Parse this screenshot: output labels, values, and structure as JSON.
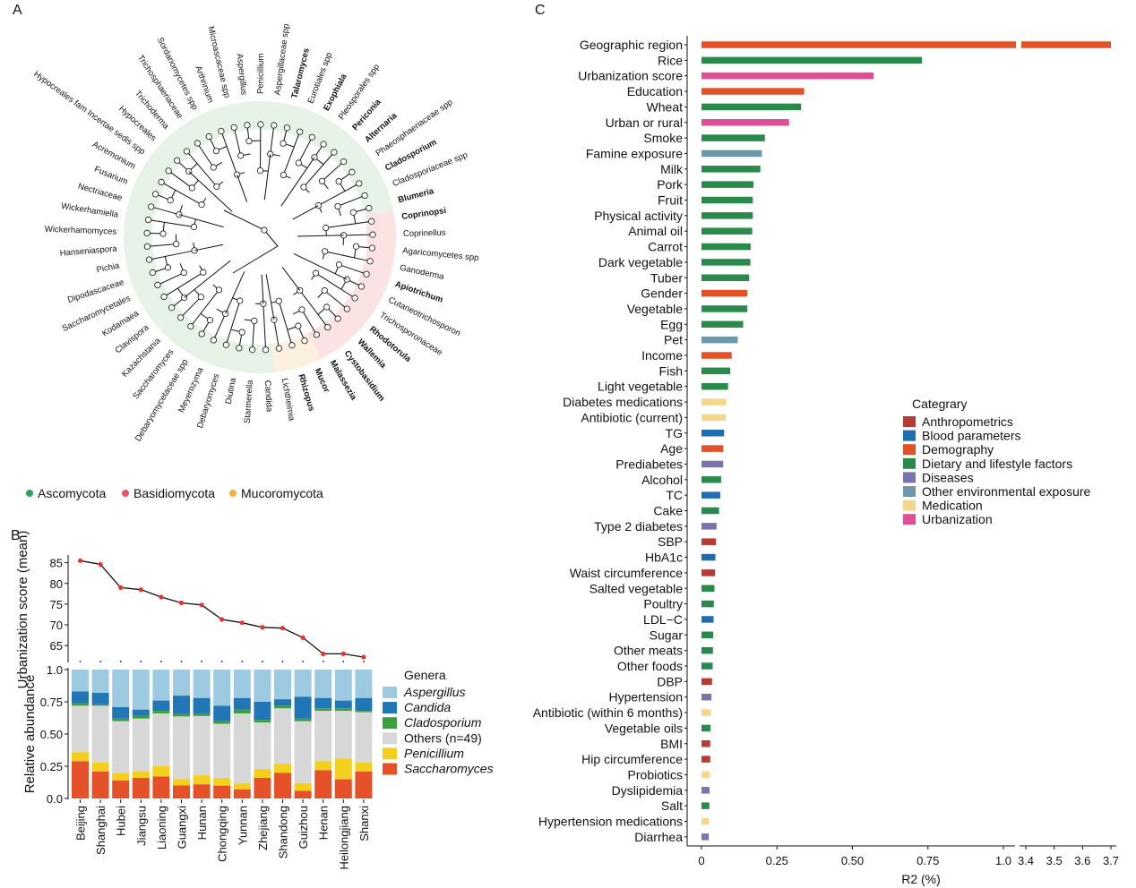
{
  "panels": {
    "a": "A",
    "b": "B",
    "c": "C"
  },
  "phylum_legend": [
    {
      "name": "Ascomycota",
      "color": "#27a35a"
    },
    {
      "name": "Basidiomycota",
      "color": "#e5566a"
    },
    {
      "name": "Mucoromycota",
      "color": "#f2b33d"
    }
  ],
  "tree": {
    "groups": [
      {
        "phylum": "Ascomycota",
        "fill": "#e6f3e6",
        "labels": [
          "Candida",
          "Starmerella",
          "Diutina",
          "Debaryomyces",
          "Meyerozyma",
          "Debaryomycetaceae spp",
          "Saccharomyces",
          "Kazachstania",
          "Clavispora",
          "Kodamaea",
          "Saccharomycetales",
          "Dipodascaceae",
          "Pichia",
          "Hanseniaspora",
          "Wickerhamomyces",
          "Wickerhamiella",
          "Nectriaceae",
          "Fusarium",
          "Acremonium",
          "Hypocreales fam Incertae sedis spp",
          "Hypocreales",
          "Trichoderma",
          "Trichosphaeriaceae",
          "Sordariomycetes spp",
          "Arthrinium",
          "Microascaceae spp",
          "Aspergillus",
          "Penicillium",
          "Aspergillaceae spp",
          "Talaromyces",
          "Eurotiales spp",
          "Exophiala",
          "Pleosporales spp",
          "Periconia",
          "Alternaria",
          "Phaeosphaeriaceae spp",
          "Cladosporium",
          "Cladosporiaceae spp",
          "Blumeria"
        ]
      },
      {
        "phylum": "Basidiomycota",
        "fill": "#fbe3e3",
        "labels": [
          "Coprinopsi",
          "Coprinellus",
          "Agaricomycetes spp",
          "Ganoderma",
          "Apiotrichum",
          "Cutaneotrichosporon",
          "Trichosporonaceae",
          "Rhodotorula",
          "Wallemia",
          "Cystobasidium",
          "Malassezia"
        ]
      },
      {
        "phylum": "Mucoromycota",
        "fill": "#fbf0dd",
        "labels": [
          "Mucor",
          "Rhizopus",
          "Lichtheimia"
        ]
      }
    ],
    "bold_labels": [
      "Talaromyces",
      "Exophiala",
      "Periconia",
      "Alternaria",
      "Cladosporium",
      "Blumeria",
      "Coprinopsi",
      "Apiotrichum",
      "Rhodotorula",
      "Wallemia",
      "Cystobasidium",
      "Malassezia",
      "Mucor",
      "Rhizopus"
    ]
  },
  "chart_data": [
    {
      "type": "line",
      "ylabel": "Urbanization score (mean)",
      "categories": [
        "Beijing",
        "Shanghai",
        "Hubei",
        "Jiangsu",
        "Liaoning",
        "Guangxi",
        "Hunan",
        "Chongqing",
        "Yunnan",
        "Zhejiang",
        "Shandong",
        "Guizhou",
        "Henan",
        "Heilongjiang",
        "Shanxi"
      ],
      "values": [
        85.5,
        84.6,
        79.0,
        78.5,
        76.7,
        75.3,
        74.8,
        71.3,
        70.5,
        69.4,
        69.2,
        66.9,
        63.0,
        63.0,
        62.2
      ],
      "yticks": [
        65,
        70,
        75,
        80,
        85
      ],
      "ylim": [
        62,
        86
      ],
      "color": "#e8322d"
    },
    {
      "type": "bar",
      "stacked": true,
      "ylabel": "Relative abundance",
      "yticks": [
        "0.0",
        "0.25",
        "0.50",
        "0.75",
        "1.0"
      ],
      "ylim": [
        0,
        1
      ],
      "legend_title": "Genera",
      "categories": [
        "Beijing",
        "Shanghai",
        "Hubei",
        "Jiangsu",
        "Liaoning",
        "Guangxi",
        "Hunan",
        "Chongqing",
        "Yunnan",
        "Zhejiang",
        "Shandong",
        "Guizhou",
        "Henan",
        "Heilongjiang",
        "Shanxi"
      ],
      "series": [
        {
          "name": "Saccharomyces",
          "italic": true,
          "color": "#e5522a",
          "values": [
            0.29,
            0.21,
            0.14,
            0.16,
            0.17,
            0.1,
            0.11,
            0.1,
            0.07,
            0.16,
            0.2,
            0.06,
            0.22,
            0.15,
            0.21
          ]
        },
        {
          "name": "Penicillium",
          "italic": true,
          "color": "#f3cf1e",
          "values": [
            0.07,
            0.07,
            0.06,
            0.05,
            0.08,
            0.05,
            0.07,
            0.06,
            0.05,
            0.07,
            0.07,
            0.06,
            0.07,
            0.16,
            0.07
          ]
        },
        {
          "name": "Others (n=49)",
          "italic": false,
          "color": "#d7d7d7",
          "values": [
            0.36,
            0.44,
            0.4,
            0.41,
            0.41,
            0.48,
            0.46,
            0.42,
            0.54,
            0.36,
            0.43,
            0.48,
            0.39,
            0.37,
            0.39
          ]
        },
        {
          "name": "Cladosporium",
          "italic": true,
          "color": "#3ba03b",
          "values": [
            0.02,
            0.01,
            0.02,
            0.02,
            0.02,
            0.02,
            0.02,
            0.02,
            0.03,
            0.02,
            0.02,
            0.02,
            0.02,
            0.02,
            0.01
          ]
        },
        {
          "name": "Candida",
          "italic": true,
          "color": "#2176b5",
          "values": [
            0.09,
            0.09,
            0.09,
            0.05,
            0.08,
            0.14,
            0.12,
            0.12,
            0.09,
            0.14,
            0.05,
            0.17,
            0.08,
            0.06,
            0.1
          ]
        },
        {
          "name": "Aspergillus",
          "italic": true,
          "color": "#9ecae1",
          "values": [
            0.17,
            0.18,
            0.29,
            0.31,
            0.24,
            0.2,
            0.22,
            0.28,
            0.22,
            0.25,
            0.23,
            0.21,
            0.22,
            0.24,
            0.22
          ]
        }
      ]
    },
    {
      "type": "bar",
      "orientation": "horizontal",
      "xlabel": "R2 (%)",
      "axis_break": true,
      "xticks_left": [
        "0",
        "0.25",
        "0.50",
        "0.75",
        "1.0"
      ],
      "xticks_right": [
        "3.4",
        "3.5",
        "3.6",
        "3.7"
      ],
      "xlim_left": [
        0,
        1.05
      ],
      "xlim_right": [
        3.37,
        3.72
      ],
      "legend_title": "Categrary",
      "legend": [
        {
          "name": "Anthropometrics",
          "color": "#b73b32"
        },
        {
          "name": "Blood parameters",
          "color": "#1f6eb0"
        },
        {
          "name": "Demography",
          "color": "#e25228"
        },
        {
          "name": "Dietary and lifestyle factors",
          "color": "#2a8a4c"
        },
        {
          "name": "Diseases",
          "color": "#7a74ad"
        },
        {
          "name": "Other environmental exposure",
          "color": "#6d98aa"
        },
        {
          "name": "Medication",
          "color": "#f4d68c"
        },
        {
          "name": "Urbanization",
          "color": "#e04c95"
        }
      ],
      "bars": [
        {
          "label": "Geographic region",
          "value": 3.7,
          "cat": 2
        },
        {
          "label": "Rice",
          "value": 0.73,
          "cat": 3
        },
        {
          "label": "Urbanization score",
          "value": 0.57,
          "cat": 7
        },
        {
          "label": "Education",
          "value": 0.34,
          "cat": 2
        },
        {
          "label": "Wheat",
          "value": 0.33,
          "cat": 3
        },
        {
          "label": "Urban or rural",
          "value": 0.29,
          "cat": 7
        },
        {
          "label": "Smoke",
          "value": 0.21,
          "cat": 3
        },
        {
          "label": "Famine exposure",
          "value": 0.2,
          "cat": 5
        },
        {
          "label": "Milk",
          "value": 0.195,
          "cat": 3
        },
        {
          "label": "Pork",
          "value": 0.172,
          "cat": 3
        },
        {
          "label": "Fruit",
          "value": 0.17,
          "cat": 3
        },
        {
          "label": "Physical activity",
          "value": 0.17,
          "cat": 3
        },
        {
          "label": "Animal oil",
          "value": 0.168,
          "cat": 3
        },
        {
          "label": "Carrot",
          "value": 0.163,
          "cat": 3
        },
        {
          "label": "Dark vegetable",
          "value": 0.162,
          "cat": 3
        },
        {
          "label": "Tuber",
          "value": 0.158,
          "cat": 3
        },
        {
          "label": "Gender",
          "value": 0.152,
          "cat": 2
        },
        {
          "label": "Vegetable",
          "value": 0.152,
          "cat": 3
        },
        {
          "label": "Egg",
          "value": 0.138,
          "cat": 3
        },
        {
          "label": "Pet",
          "value": 0.12,
          "cat": 5
        },
        {
          "label": "Income",
          "value": 0.1,
          "cat": 2
        },
        {
          "label": "Fish",
          "value": 0.095,
          "cat": 3
        },
        {
          "label": "Light vegetable",
          "value": 0.088,
          "cat": 3
        },
        {
          "label": "Diabetes medications",
          "value": 0.082,
          "cat": 6
        },
        {
          "label": "Antibiotic (current)",
          "value": 0.08,
          "cat": 6
        },
        {
          "label": "TG",
          "value": 0.075,
          "cat": 1
        },
        {
          "label": "Age",
          "value": 0.072,
          "cat": 2
        },
        {
          "label": "Prediabetes",
          "value": 0.072,
          "cat": 4
        },
        {
          "label": "Alcohol",
          "value": 0.065,
          "cat": 3
        },
        {
          "label": "TC",
          "value": 0.062,
          "cat": 1
        },
        {
          "label": "Cake",
          "value": 0.058,
          "cat": 3
        },
        {
          "label": "Type 2 diabetes",
          "value": 0.05,
          "cat": 4
        },
        {
          "label": "SBP",
          "value": 0.048,
          "cat": 0
        },
        {
          "label": "HbA1c",
          "value": 0.046,
          "cat": 1
        },
        {
          "label": "Waist circumference",
          "value": 0.045,
          "cat": 0
        },
        {
          "label": "Salted vegetable",
          "value": 0.043,
          "cat": 3
        },
        {
          "label": "Poultry",
          "value": 0.041,
          "cat": 3
        },
        {
          "label": "LDL−C",
          "value": 0.04,
          "cat": 1
        },
        {
          "label": "Sugar",
          "value": 0.039,
          "cat": 3
        },
        {
          "label": "Other meats",
          "value": 0.038,
          "cat": 3
        },
        {
          "label": "Other foods",
          "value": 0.037,
          "cat": 3
        },
        {
          "label": "DBP",
          "value": 0.035,
          "cat": 0
        },
        {
          "label": "Hypertension",
          "value": 0.033,
          "cat": 4
        },
        {
          "label": "Antibiotic (within 6 months)",
          "value": 0.031,
          "cat": 6
        },
        {
          "label": "Vegetable oils",
          "value": 0.03,
          "cat": 3
        },
        {
          "label": "BMI",
          "value": 0.029,
          "cat": 0
        },
        {
          "label": "Hip circumference",
          "value": 0.029,
          "cat": 0
        },
        {
          "label": "Probiotics",
          "value": 0.028,
          "cat": 6
        },
        {
          "label": "Dyslipidemia",
          "value": 0.027,
          "cat": 4
        },
        {
          "label": "Salt",
          "value": 0.026,
          "cat": 3
        },
        {
          "label": "Hypertension medications",
          "value": 0.025,
          "cat": 6
        },
        {
          "label": "Diarrhea",
          "value": 0.024,
          "cat": 4
        }
      ]
    }
  ]
}
